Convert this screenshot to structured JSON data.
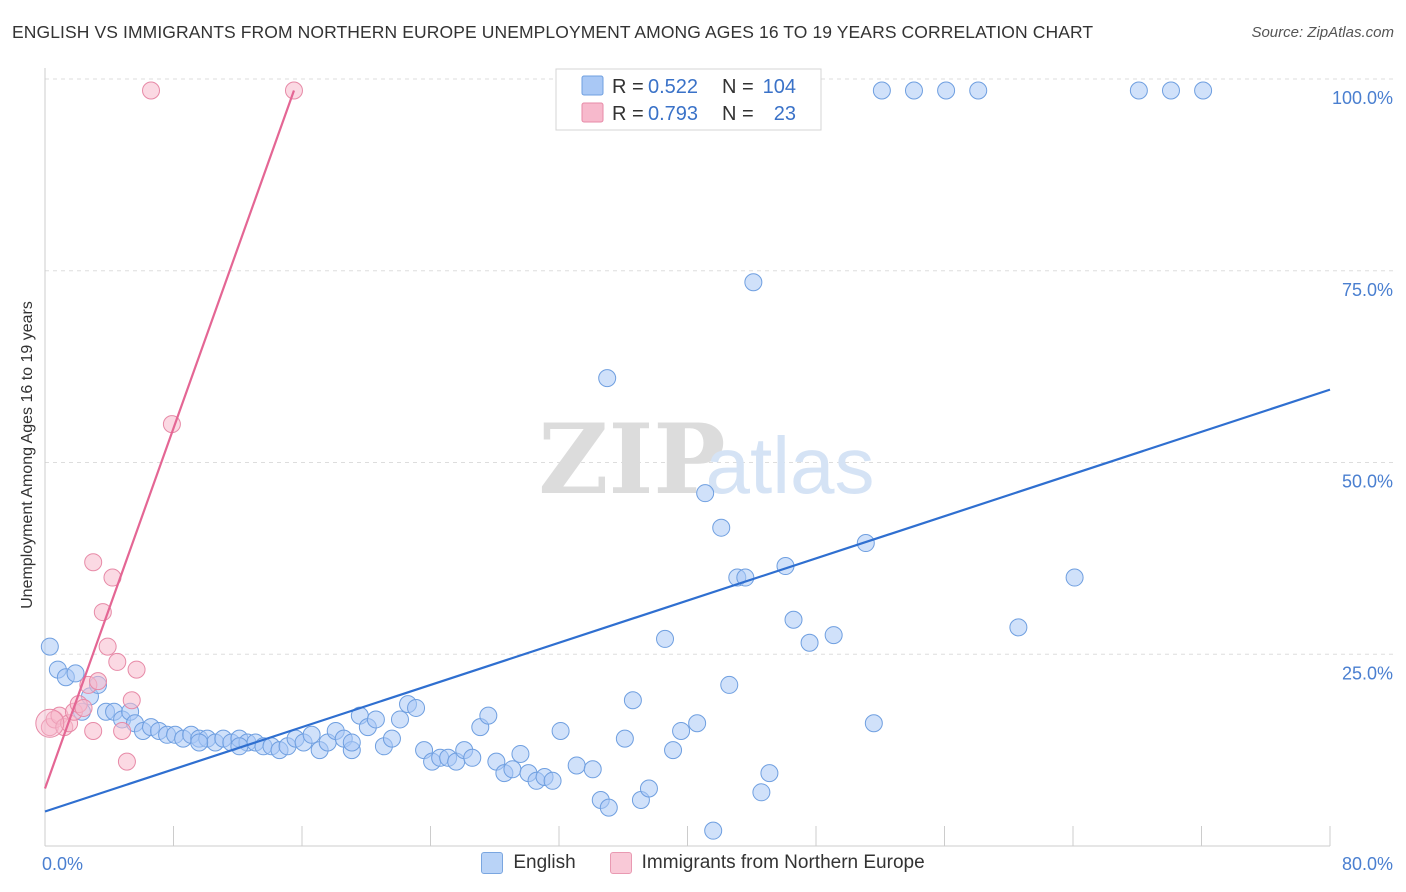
{
  "title": "ENGLISH VS IMMIGRANTS FROM NORTHERN EUROPE UNEMPLOYMENT AMONG AGES 16 TO 19 YEARS CORRELATION CHART",
  "source": "Source: ZipAtlas.com",
  "watermark": {
    "zip": "ZIP",
    "atlas": "atlas"
  },
  "legend_top": [
    {
      "r_label": "R =",
      "r_value": "0.522",
      "n_label": "N =",
      "n_value": "104",
      "color": "#a9c8f5",
      "stroke": "#6f9fe0"
    },
    {
      "r_label": "R =",
      "r_value": "0.793",
      "n_label": "N =",
      "n_value": "23",
      "color": "#f7b9cc",
      "stroke": "#e78aa7"
    }
  ],
  "legend_bottom": [
    {
      "label": "English",
      "color": "#b9d3f7",
      "stroke": "#7aa6e0"
    },
    {
      "label": "Immigrants from Northern Europe",
      "color": "#f9c9d7",
      "stroke": "#e99ab2"
    }
  ],
  "chart_data": {
    "type": "scatter",
    "title": "ENGLISH VS IMMIGRANTS FROM NORTHERN EUROPE UNEMPLOYMENT AMONG AGES 16 TO 19 YEARS CORRELATION CHART",
    "xlabel": "",
    "ylabel": "Unemployment Among Ages 16 to 19 years",
    "xlim": [
      0,
      80
    ],
    "ylim": [
      0,
      100
    ],
    "x_tick_labels": [
      "0.0%",
      "80.0%"
    ],
    "y_ticks": [
      25,
      50,
      75,
      100
    ],
    "y_tick_labels": [
      "25.0%",
      "50.0%",
      "75.0%",
      "100.0%"
    ],
    "grid": true,
    "series": [
      {
        "name": "English",
        "color": "#a9c8f5",
        "stroke": "#6f9fe0",
        "trend": {
          "color": "#2f6fd0",
          "x": [
            0,
            80
          ],
          "y": [
            4.5,
            59.5
          ]
        },
        "points": [
          [
            0.3,
            26
          ],
          [
            0.8,
            23
          ],
          [
            1.3,
            22
          ],
          [
            1.9,
            22.5
          ],
          [
            2.3,
            17.5
          ],
          [
            2.8,
            19.5
          ],
          [
            3.3,
            21
          ],
          [
            3.8,
            17.5
          ],
          [
            4.3,
            17.5
          ],
          [
            4.8,
            16.5
          ],
          [
            5.3,
            17.5
          ],
          [
            5.6,
            16
          ],
          [
            6.1,
            15
          ],
          [
            6.6,
            15.5
          ],
          [
            7.1,
            15
          ],
          [
            7.6,
            14.5
          ],
          [
            8.1,
            14.5
          ],
          [
            8.6,
            14
          ],
          [
            9.1,
            14.5
          ],
          [
            9.6,
            14
          ],
          [
            10.1,
            14
          ],
          [
            10.6,
            13.5
          ],
          [
            11.1,
            14
          ],
          [
            11.6,
            13.5
          ],
          [
            12.1,
            14
          ],
          [
            12.6,
            13.5
          ],
          [
            13.1,
            13.5
          ],
          [
            13.6,
            13
          ],
          [
            14.1,
            13
          ],
          [
            14.6,
            12.5
          ],
          [
            15.1,
            13
          ],
          [
            15.6,
            14
          ],
          [
            16.1,
            13.5
          ],
          [
            16.6,
            14.5
          ],
          [
            17.1,
            12.5
          ],
          [
            17.6,
            13.5
          ],
          [
            18.1,
            15
          ],
          [
            18.6,
            14
          ],
          [
            19.1,
            12.5
          ],
          [
            19.6,
            17
          ],
          [
            20.1,
            15.5
          ],
          [
            20.6,
            16.5
          ],
          [
            21.1,
            13
          ],
          [
            21.6,
            14
          ],
          [
            22.1,
            16.5
          ],
          [
            22.6,
            18.5
          ],
          [
            23.1,
            18
          ],
          [
            23.6,
            12.5
          ],
          [
            24.1,
            11
          ],
          [
            24.6,
            11.5
          ],
          [
            25.1,
            11.5
          ],
          [
            25.6,
            11
          ],
          [
            26.1,
            12.5
          ],
          [
            26.6,
            11.5
          ],
          [
            27.1,
            15.5
          ],
          [
            27.6,
            17
          ],
          [
            28.1,
            11
          ],
          [
            28.6,
            9.5
          ],
          [
            29.1,
            10
          ],
          [
            29.6,
            12
          ],
          [
            30.1,
            9.5
          ],
          [
            30.6,
            8.5
          ],
          [
            31.1,
            9
          ],
          [
            31.6,
            8.5
          ],
          [
            32.1,
            15
          ],
          [
            33.1,
            10.5
          ],
          [
            34.1,
            10
          ],
          [
            34.6,
            6
          ],
          [
            35.1,
            5
          ],
          [
            36.1,
            14
          ],
          [
            36.6,
            19
          ],
          [
            37.1,
            6
          ],
          [
            37.6,
            7.5
          ],
          [
            38.6,
            27
          ],
          [
            39.1,
            12.5
          ],
          [
            39.6,
            15
          ],
          [
            40.6,
            16
          ],
          [
            41.1,
            46
          ],
          [
            41.6,
            2
          ],
          [
            42.1,
            41.5
          ],
          [
            42.6,
            21
          ],
          [
            43.1,
            35
          ],
          [
            43.6,
            35
          ],
          [
            44.1,
            73.5
          ],
          [
            44.6,
            7
          ],
          [
            45.1,
            9.5
          ],
          [
            46.1,
            36.5
          ],
          [
            46.6,
            29.5
          ],
          [
            47.6,
            26.5
          ],
          [
            49.1,
            27.5
          ],
          [
            51.1,
            39.5
          ],
          [
            51.6,
            16
          ],
          [
            52.1,
            98.5
          ],
          [
            54.1,
            98.5
          ],
          [
            56.1,
            98.5
          ],
          [
            58.1,
            98.5
          ],
          [
            60.6,
            28.5
          ],
          [
            64.1,
            35
          ],
          [
            68.1,
            98.5
          ],
          [
            70.1,
            98.5
          ],
          [
            72.1,
            98.5
          ],
          [
            35.0,
            61
          ],
          [
            19.1,
            13.5
          ],
          [
            9.6,
            13.5
          ],
          [
            12.1,
            13
          ]
        ]
      },
      {
        "name": "Immigrants from Northern Europe",
        "color": "#f7b9cc",
        "stroke": "#e78aa7",
        "trend": {
          "color": "#e46694",
          "x": [
            0,
            15.5
          ],
          "y": [
            7.5,
            98.5
          ]
        },
        "points": [
          [
            0.3,
            15.5
          ],
          [
            0.6,
            16.5
          ],
          [
            0.9,
            17
          ],
          [
            1.2,
            15.5
          ],
          [
            1.5,
            16
          ],
          [
            1.8,
            17.5
          ],
          [
            2.1,
            18.5
          ],
          [
            2.4,
            18
          ],
          [
            2.7,
            21
          ],
          [
            3.0,
            15
          ],
          [
            3.3,
            21.5
          ],
          [
            3.6,
            30.5
          ],
          [
            3.9,
            26
          ],
          [
            4.2,
            35
          ],
          [
            4.5,
            24
          ],
          [
            4.8,
            15
          ],
          [
            5.1,
            11
          ],
          [
            5.4,
            19
          ],
          [
            5.7,
            23
          ],
          [
            6.6,
            98.5
          ],
          [
            7.9,
            55
          ],
          [
            3.0,
            37
          ],
          [
            15.5,
            98.5
          ]
        ]
      }
    ]
  }
}
